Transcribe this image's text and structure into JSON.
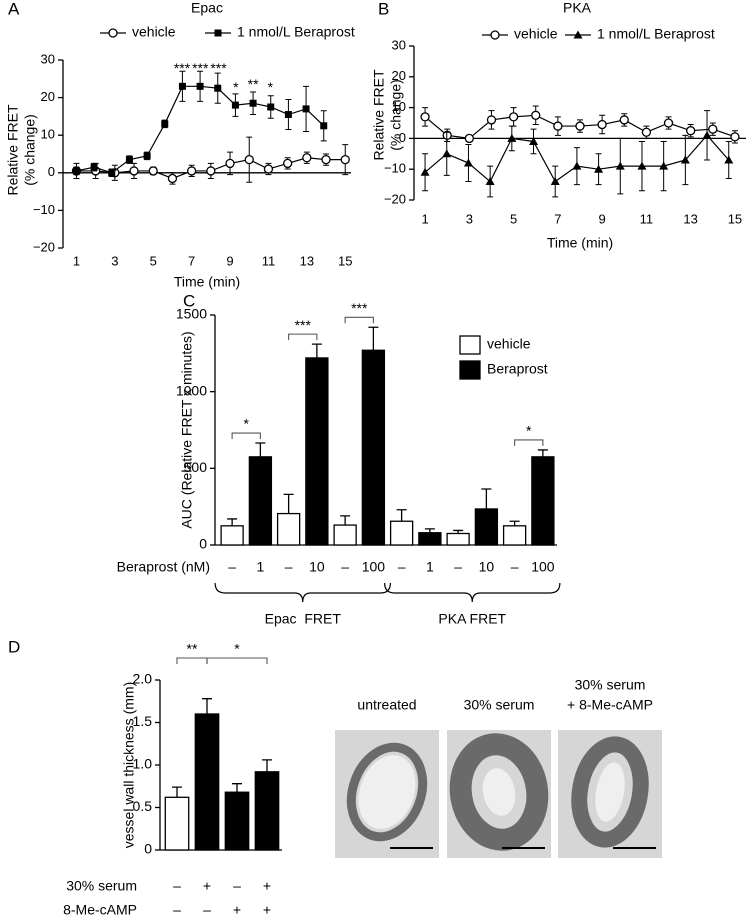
{
  "chart_data": [
    {
      "type": "line",
      "panel": "A",
      "title": "Epac",
      "ylabel": [
        "Relative FRET",
        "(% change)"
      ],
      "xlabel": "Time (min)",
      "xlim": [
        0.3,
        15.3
      ],
      "xticks": [
        1,
        3,
        5,
        7,
        9,
        11,
        13,
        15
      ],
      "ylim": [
        -20,
        30
      ],
      "yticks": [
        {
          "value": -20,
          "label": "−20"
        },
        {
          "value": -10,
          "label": "−10"
        },
        0,
        10,
        20,
        30
      ],
      "series": [
        {
          "name": "vehicle",
          "color": "#000000",
          "marker": "open-circle",
          "x": [
            1,
            2,
            3,
            4,
            5,
            6,
            7,
            8,
            9,
            10,
            11,
            12,
            13,
            14,
            15
          ],
          "values": [
            0.5,
            0.5,
            0,
            0.5,
            0.5,
            -1.5,
            0.5,
            0.5,
            2.5,
            3.5,
            1,
            2.5,
            4,
            3.5,
            3.5
          ],
          "errors": [
            2,
            2,
            2,
            2,
            1,
            1.5,
            1.5,
            2,
            3,
            6,
            1.5,
            1.5,
            1.5,
            1.5,
            4
          ]
        },
        {
          "name": "1 nmol/L Beraprost",
          "color": "#000000",
          "marker": "square",
          "x": [
            1,
            1.92,
            2.84,
            3.76,
            4.68,
            5.6,
            6.52,
            7.44,
            8.36,
            9.28,
            10.2,
            11.12,
            12.04,
            12.96,
            13.88
          ],
          "values": [
            0.5,
            1.5,
            0,
            3.5,
            4.5,
            13,
            23,
            23,
            22.5,
            18,
            18.5,
            17.5,
            15.5,
            17,
            12.5
          ],
          "errors": [
            1,
            1,
            1,
            1,
            1,
            1,
            4,
            4,
            4,
            3,
            3,
            3,
            4,
            6,
            4
          ]
        }
      ],
      "annotations": [
        {
          "text": "***",
          "x": 6.5,
          "y": 27.5
        },
        {
          "text": "***",
          "x": 7.45,
          "y": 27.5
        },
        {
          "text": "***",
          "x": 8.4,
          "y": 27.5
        },
        {
          "text": "*",
          "x": 9.3,
          "y": 22.5
        },
        {
          "text": "**",
          "x": 10.2,
          "y": 23.3
        },
        {
          "text": "*",
          "x": 11.1,
          "y": 22.5
        }
      ]
    },
    {
      "type": "line",
      "panel": "B",
      "title": "PKA",
      "ylabel": [
        "Relative FRET",
        "(% change)"
      ],
      "xlabel": "Time (min)",
      "xlim": [
        0.5,
        15.5
      ],
      "xticks": [
        1,
        3,
        5,
        7,
        9,
        11,
        13,
        15
      ],
      "ylim": [
        -20,
        30
      ],
      "yticks": [
        {
          "value": -20,
          "label": "−20"
        },
        {
          "value": -10,
          "label": "−10"
        },
        0,
        10,
        20,
        30
      ],
      "series": [
        {
          "name": "vehicle",
          "color": "#000000",
          "marker": "open-circle",
          "x": [
            1,
            2,
            3,
            4,
            5,
            6,
            7,
            8,
            9,
            10,
            11,
            12,
            13,
            14,
            15
          ],
          "values": [
            7,
            1,
            0,
            6,
            7,
            7.5,
            4,
            4,
            4.5,
            6,
            2,
            5,
            2.5,
            3,
            0.5
          ],
          "errors": [
            3,
            2,
            1,
            3,
            3,
            3,
            3,
            2,
            3,
            2,
            2,
            2,
            2,
            2,
            2
          ]
        },
        {
          "name": "1 nmol/L Beraprost",
          "color": "#000000",
          "marker": "triangle",
          "x": [
            1,
            1.98,
            2.96,
            3.94,
            4.92,
            5.9,
            6.88,
            7.86,
            8.84,
            9.82,
            10.8,
            11.78,
            12.76,
            13.74,
            14.72
          ],
          "values": [
            -11,
            -5,
            -8,
            -14,
            0,
            -1,
            -14,
            -9,
            -10,
            -9,
            -9,
            -9,
            -7,
            1,
            -7
          ],
          "errors": [
            6,
            7,
            6,
            5,
            4,
            4,
            5,
            6,
            5,
            9,
            8,
            8,
            8,
            8,
            6
          ]
        }
      ]
    },
    {
      "type": "bar",
      "panel": "C",
      "ylabel": "AUC (Relative FRET x minutes)",
      "xlabel": "Beraprost (nM)",
      "categories": [
        "1",
        "10",
        "100",
        "1",
        "10",
        "100"
      ],
      "control_label": "–",
      "groups": [
        "Epac  FRET",
        "PKA FRET"
      ],
      "ylim": [
        0,
        1500
      ],
      "yticks": [
        0,
        500,
        1000,
        1500
      ],
      "series": [
        {
          "name": "vehicle",
          "color": "#ffffff",
          "values": [
            125,
            205,
            130,
            155,
            75,
            125
          ],
          "errors": [
            45,
            125,
            60,
            75,
            20,
            30
          ]
        },
        {
          "name": "Beraprost",
          "color": "#000000",
          "values": [
            575,
            1220,
            1270,
            80,
            235,
            575
          ],
          "errors": [
            90,
            90,
            150,
            25,
            130,
            45
          ]
        }
      ],
      "significance": [
        {
          "text": "*",
          "from": 0,
          "to": 1
        },
        {
          "text": "***",
          "from": 2,
          "to": 3
        },
        {
          "text": "***",
          "from": 4,
          "to": 5
        },
        {
          "text": "*",
          "from": 10,
          "to": 11
        }
      ]
    },
    {
      "type": "bar",
      "panel": "D",
      "ylabel": "vessel wall thickness (mm)",
      "ylim": [
        0,
        2
      ],
      "yticks": [
        0,
        0.5,
        {
          "value": 1,
          "label": "1.0"
        },
        1.5,
        {
          "value": 2,
          "label": "2.0"
        }
      ],
      "values": [
        0.62,
        1.6,
        0.68,
        0.92
      ],
      "errors": [
        0.12,
        0.18,
        0.1,
        0.14
      ],
      "colors": [
        "#ffffff",
        "#000000",
        "#000000",
        "#000000"
      ],
      "conditions": [
        {
          "name": "30% serum",
          "labels": [
            "–",
            "+",
            "–",
            "+"
          ]
        },
        {
          "name": "8-Me-cAMP",
          "labels": [
            "–",
            "–",
            "+",
            "+"
          ]
        }
      ],
      "significance": [
        {
          "text": "**",
          "from": 0,
          "to": 1
        },
        {
          "text": "*",
          "from": 1,
          "to": 3
        }
      ]
    }
  ],
  "micrographs": [
    {
      "label": [
        "untreated"
      ]
    },
    {
      "label": [
        "30% serum"
      ]
    },
    {
      "label": [
        "30% serum",
        "+ 8-Me-cAMP"
      ]
    }
  ]
}
